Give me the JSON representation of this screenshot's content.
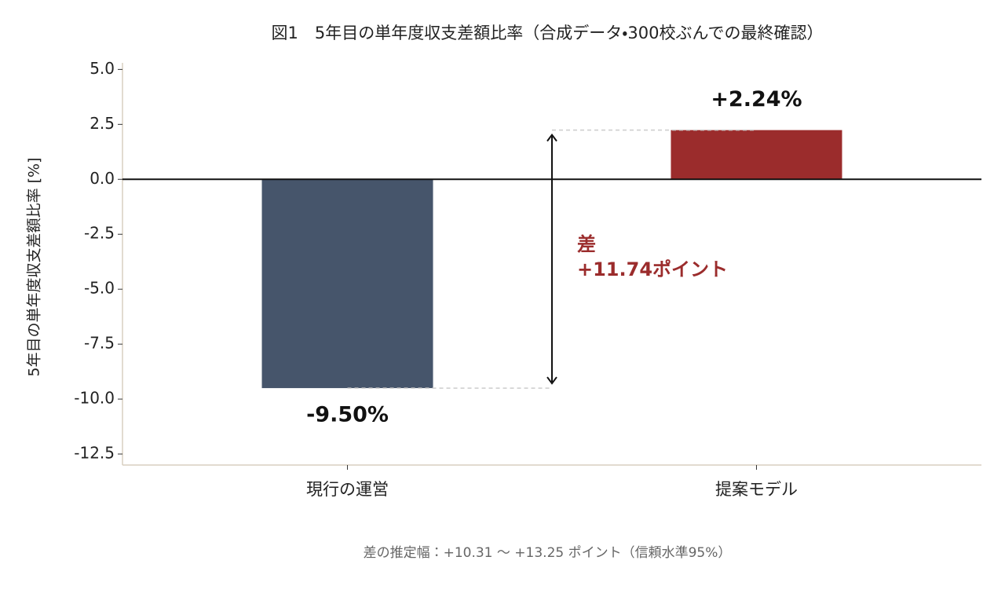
{
  "chart_data": {
    "type": "bar",
    "title": "図1　5年目の単年度収支差額比率（合成データ・300校ぶんでの最終確認）",
    "y_label": "5年目の単年度収支差額比率 [%]",
    "categories": [
      "現行の運営",
      "提案モデル"
    ],
    "values": [
      -9.5,
      2.24
    ],
    "value_labels": [
      "-9.50%",
      "+2.24%"
    ],
    "colors": [
      "#46556b",
      "#9b2c2c"
    ],
    "ylim": [
      -13.0,
      5.3
    ],
    "yticks": [
      {
        "value": 5,
        "label": "5.0"
      },
      2.5,
      {
        "value": 0,
        "label": "0.0"
      },
      -2.5,
      {
        "value": -5,
        "label": "-5.0"
      },
      -7.5,
      {
        "value": -10,
        "label": "-10.0"
      },
      -12.5
    ],
    "annotation": {
      "lines": [
        "差",
        "+11.74ポイント"
      ],
      "color": "#9b2c2c"
    },
    "footnote": "差の推定幅：+10.31 〜 +13.25 ポイント（信頼水準95%）"
  }
}
